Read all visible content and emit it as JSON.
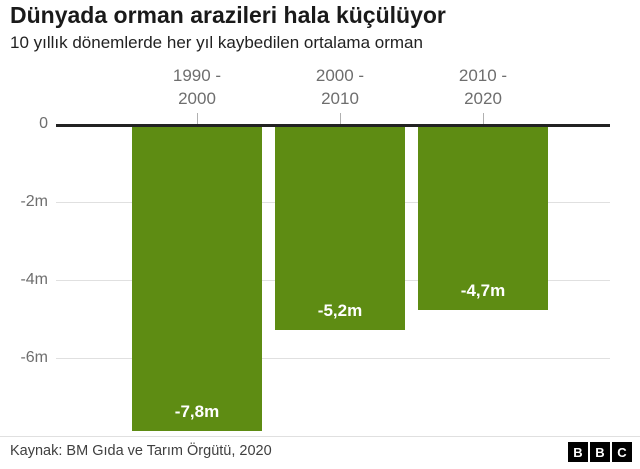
{
  "title": "Dünyada orman arazileri hala küçülüyor",
  "subtitle": "10 yıllık dönemlerde her yıl kaybedilen ortalama orman",
  "chart_data": {
    "type": "bar",
    "categories": [
      "1990 -\n2000",
      "2000 -\n2010",
      "2010 -\n2020"
    ],
    "values": [
      -7.8,
      -5.2,
      -4.7
    ],
    "bar_labels": [
      "-7,8m",
      "-5,2m",
      "-4,7m"
    ],
    "title": "Dünyada orman arazileri hala küçülüyor",
    "subtitle": "10 yıllık dönemlerde her yıl kaybedilen ortalama orman",
    "xlabel": "",
    "ylabel": "",
    "ylim": [
      -8,
      0
    ],
    "yticks": [
      {
        "value": 0,
        "label": "0"
      },
      {
        "value": -2,
        "label": "-2m"
      },
      {
        "value": -4,
        "label": "-4m"
      },
      {
        "value": -6,
        "label": "-6m"
      }
    ],
    "grid": true,
    "legend": false,
    "bar_color": "#5e8c13"
  },
  "colors": {
    "bar": "#5e8c13",
    "axis_text": "#6e6e6e",
    "zero_line": "#222222",
    "gridline": "#e0e0e0",
    "bar_label_text": "#ffffff"
  },
  "footer": {
    "source": "Kaynak: BM Gıda ve Tarım Örgütü, 2020",
    "logo_letters": [
      "B",
      "B",
      "C"
    ]
  }
}
